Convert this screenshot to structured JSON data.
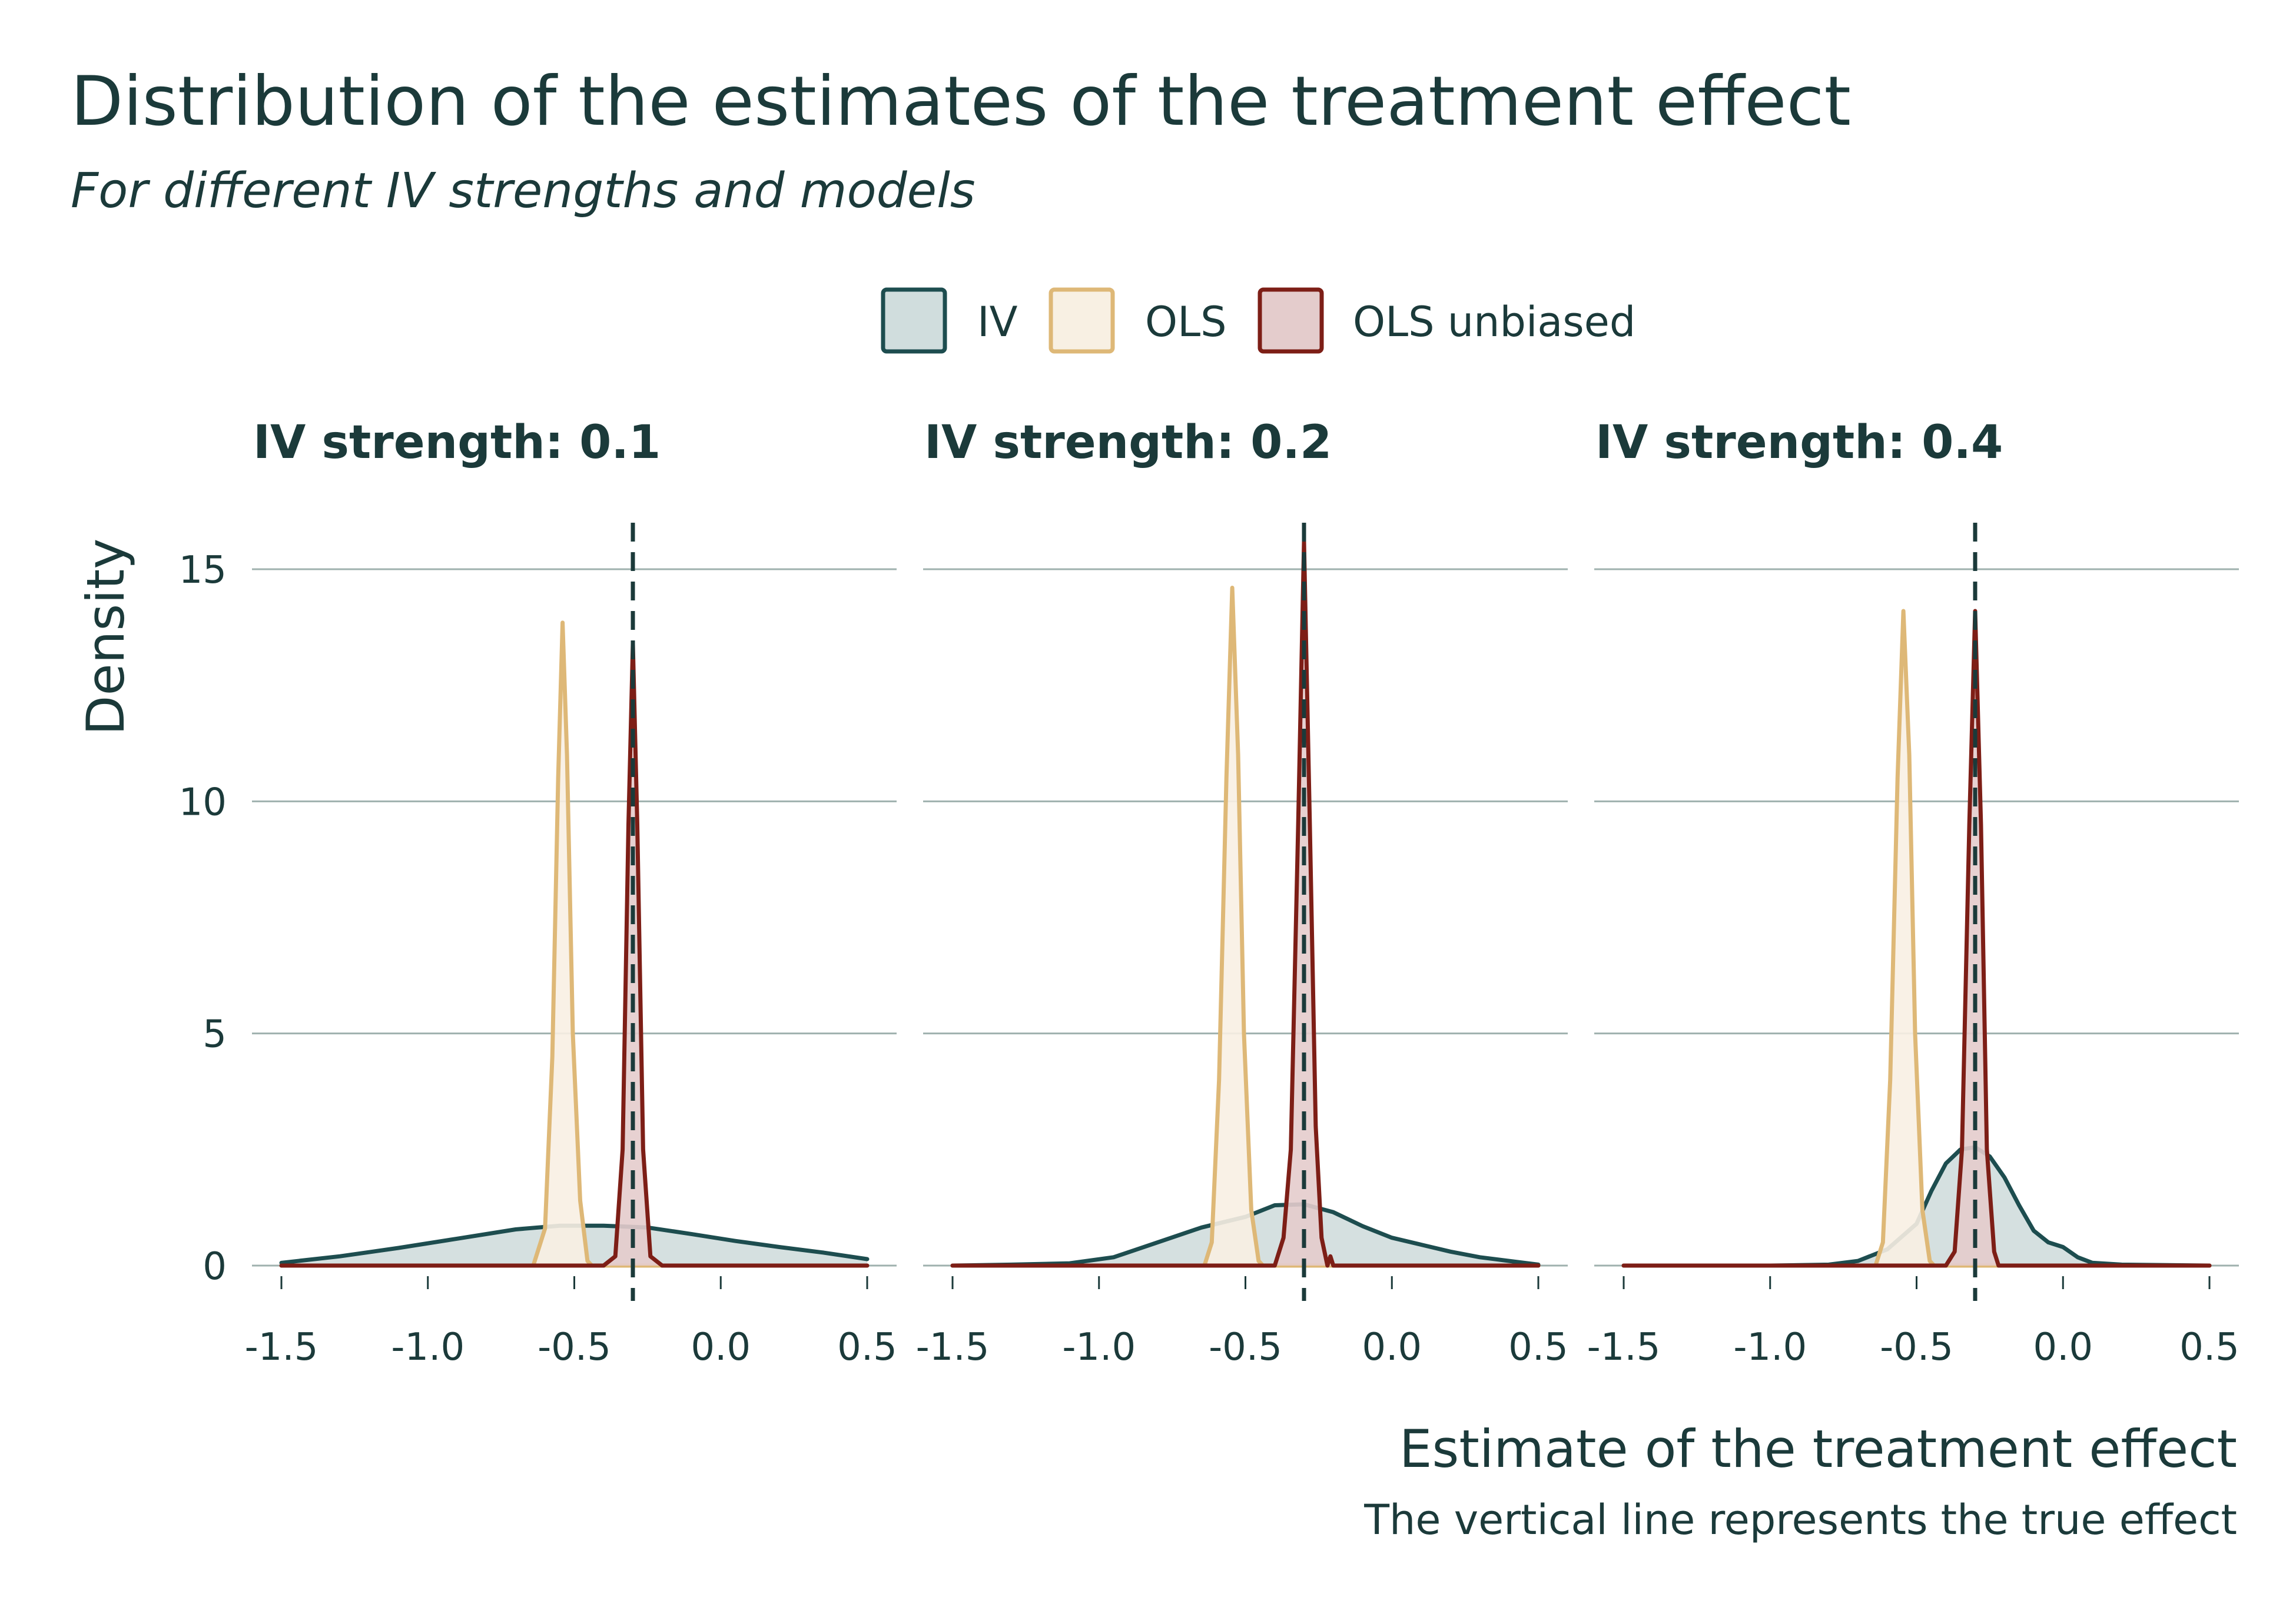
{
  "title": "Distribution of the estimates of the treatment effect",
  "subtitle": "For different IV strengths and models",
  "caption": "The vertical line represents the true effect",
  "chart_data": {
    "type": "area",
    "xlabel": "Estimate of the treatment effect",
    "ylabel": "Density",
    "xlim": [
      -1.5,
      0.5
    ],
    "ylim": [
      0,
      15
    ],
    "x_ticks": [
      -1.5,
      -1.0,
      -0.5,
      0.0,
      0.5
    ],
    "x_tick_labels": [
      "-1.5",
      "-1.0",
      "-0.5",
      "0.0",
      "0.5"
    ],
    "y_ticks": [
      0,
      5,
      10,
      15
    ],
    "y_tick_labels": [
      "0",
      "5",
      "10",
      "15"
    ],
    "grid": "horizontal",
    "legend_position": "top",
    "true_effect": -0.3,
    "legend": [
      {
        "name": "IV",
        "stroke": "#1d4d4f",
        "fill": "#d0dddd"
      },
      {
        "name": "OLS",
        "stroke": "#deb877",
        "fill": "#f8f0e3"
      },
      {
        "name": "OLS unbiased",
        "stroke": "#7d1e16",
        "fill": "#e4cccc"
      }
    ],
    "facets": [
      {
        "title": "IV strength: 0.1",
        "series": [
          {
            "name": "IV",
            "points": [
              [
                -1.5,
                0.06
              ],
              [
                -1.3,
                0.2
              ],
              [
                -1.1,
                0.38
              ],
              [
                -0.9,
                0.58
              ],
              [
                -0.7,
                0.78
              ],
              [
                -0.55,
                0.86
              ],
              [
                -0.4,
                0.86
              ],
              [
                -0.25,
                0.82
              ],
              [
                -0.1,
                0.68
              ],
              [
                0.05,
                0.53
              ],
              [
                0.2,
                0.4
              ],
              [
                0.35,
                0.28
              ],
              [
                0.5,
                0.14
              ]
            ]
          },
          {
            "name": "OLS",
            "points": [
              [
                -1.5,
                0
              ],
              [
                -0.64,
                0
              ],
              [
                -0.6,
                0.8
              ],
              [
                -0.575,
                4.5
              ],
              [
                -0.555,
                10.5
              ],
              [
                -0.54,
                13.85
              ],
              [
                -0.525,
                11
              ],
              [
                -0.505,
                5
              ],
              [
                -0.48,
                1.4
              ],
              [
                -0.455,
                0.1
              ],
              [
                -0.44,
                0
              ],
              [
                0.5,
                0
              ]
            ]
          },
          {
            "name": "OLS unbiased",
            "points": [
              [
                -1.5,
                0
              ],
              [
                -0.4,
                0
              ],
              [
                -0.36,
                0.2
              ],
              [
                -0.335,
                2.5
              ],
              [
                -0.315,
                9.5
              ],
              [
                -0.3,
                13.4
              ],
              [
                -0.285,
                9.5
              ],
              [
                -0.265,
                2.5
              ],
              [
                -0.24,
                0.2
              ],
              [
                -0.2,
                0
              ],
              [
                0.5,
                0
              ]
            ]
          }
        ]
      },
      {
        "title": "IV strength: 0.2",
        "series": [
          {
            "name": "IV",
            "points": [
              [
                -1.5,
                0
              ],
              [
                -1.3,
                0.02
              ],
              [
                -1.1,
                0.05
              ],
              [
                -0.95,
                0.18
              ],
              [
                -0.8,
                0.5
              ],
              [
                -0.65,
                0.82
              ],
              [
                -0.5,
                1.05
              ],
              [
                -0.4,
                1.3
              ],
              [
                -0.3,
                1.32
              ],
              [
                -0.2,
                1.15
              ],
              [
                -0.1,
                0.85
              ],
              [
                0.0,
                0.6
              ],
              [
                0.1,
                0.45
              ],
              [
                0.2,
                0.3
              ],
              [
                0.3,
                0.18
              ],
              [
                0.4,
                0.1
              ],
              [
                0.5,
                0.02
              ]
            ]
          },
          {
            "name": "OLS",
            "points": [
              [
                -1.5,
                0
              ],
              [
                -0.64,
                0
              ],
              [
                -0.615,
                0.5
              ],
              [
                -0.59,
                4
              ],
              [
                -0.565,
                10.5
              ],
              [
                -0.545,
                14.6
              ],
              [
                -0.525,
                11
              ],
              [
                -0.505,
                5
              ],
              [
                -0.48,
                1.2
              ],
              [
                -0.455,
                0.1
              ],
              [
                -0.44,
                0
              ],
              [
                0.5,
                0
              ]
            ]
          },
          {
            "name": "OLS unbiased",
            "points": [
              [
                -1.5,
                0
              ],
              [
                -0.4,
                0
              ],
              [
                -0.37,
                0.6
              ],
              [
                -0.345,
                2.5
              ],
              [
                -0.32,
                9.5
              ],
              [
                -0.3,
                15.6
              ],
              [
                -0.28,
                9.5
              ],
              [
                -0.26,
                3
              ],
              [
                -0.24,
                0.6
              ],
              [
                -0.22,
                0
              ],
              [
                -0.21,
                0.2
              ],
              [
                -0.2,
                0
              ],
              [
                0.5,
                0
              ]
            ]
          }
        ]
      },
      {
        "title": "IV strength: 0.4",
        "series": [
          {
            "name": "IV",
            "points": [
              [
                -1.5,
                0
              ],
              [
                -1.0,
                0
              ],
              [
                -0.8,
                0.02
              ],
              [
                -0.7,
                0.1
              ],
              [
                -0.6,
                0.35
              ],
              [
                -0.5,
                0.9
              ],
              [
                -0.45,
                1.6
              ],
              [
                -0.4,
                2.2
              ],
              [
                -0.35,
                2.5
              ],
              [
                -0.3,
                2.55
              ],
              [
                -0.25,
                2.35
              ],
              [
                -0.2,
                1.9
              ],
              [
                -0.15,
                1.3
              ],
              [
                -0.1,
                0.75
              ],
              [
                -0.05,
                0.5
              ],
              [
                0.0,
                0.4
              ],
              [
                0.05,
                0.18
              ],
              [
                0.1,
                0.06
              ],
              [
                0.2,
                0.02
              ],
              [
                0.5,
                0
              ]
            ]
          },
          {
            "name": "OLS",
            "points": [
              [
                -1.5,
                0
              ],
              [
                -0.64,
                0
              ],
              [
                -0.615,
                0.5
              ],
              [
                -0.59,
                4
              ],
              [
                -0.565,
                10.5
              ],
              [
                -0.545,
                14.1
              ],
              [
                -0.525,
                11
              ],
              [
                -0.505,
                5
              ],
              [
                -0.48,
                1.2
              ],
              [
                -0.455,
                0.1
              ],
              [
                -0.44,
                0
              ],
              [
                0.5,
                0
              ]
            ]
          },
          {
            "name": "OLS unbiased",
            "points": [
              [
                -1.5,
                0
              ],
              [
                -0.4,
                0
              ],
              [
                -0.37,
                0.3
              ],
              [
                -0.345,
                2.5
              ],
              [
                -0.32,
                9.5
              ],
              [
                -0.3,
                14.1
              ],
              [
                -0.28,
                9.5
              ],
              [
                -0.26,
                2.5
              ],
              [
                -0.235,
                0.3
              ],
              [
                -0.22,
                0
              ],
              [
                0.5,
                0
              ]
            ]
          }
        ]
      }
    ]
  }
}
